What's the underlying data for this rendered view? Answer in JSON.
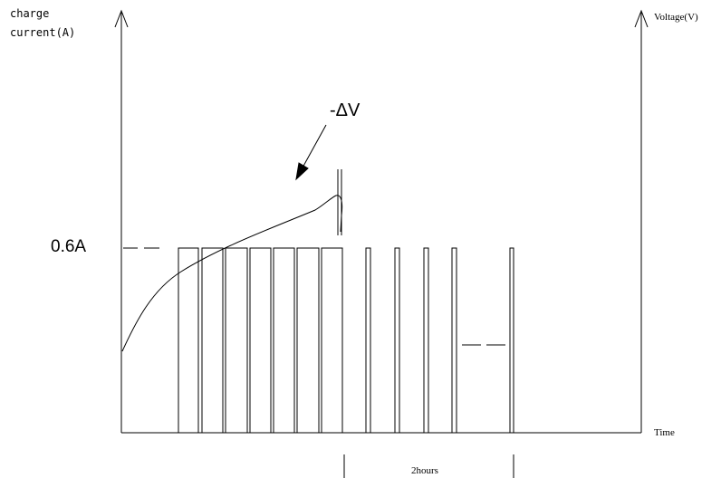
{
  "labels": {
    "left_axis_line1": "charge",
    "left_axis_line2": "current(A)",
    "right_axis": "Voltage(V)",
    "x_axis": "Time",
    "current_level": "0.6A",
    "delta_v": "-ΔV",
    "duration": "2hours"
  },
  "colors": {
    "stroke": "#000000",
    "background": "#ffffff"
  }
}
